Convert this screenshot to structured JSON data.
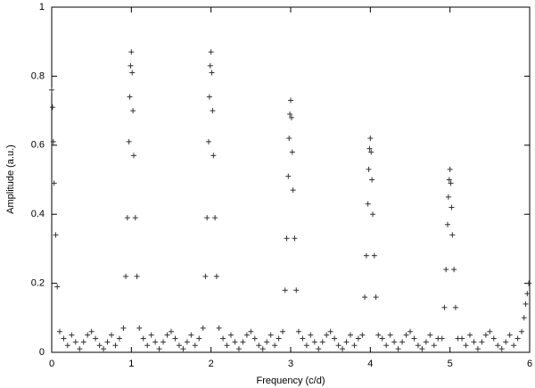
{
  "chart_data": {
    "type": "scatter",
    "xlabel": "Frequency (c/d)",
    "ylabel": "Amplitude (a.u.)",
    "color": "#333333",
    "marker": "+",
    "grid": false,
    "xlim": [
      0,
      6
    ],
    "ylim": [
      0,
      1
    ],
    "xticks": [
      0,
      1,
      2,
      3,
      4,
      5,
      6
    ],
    "yticks": [
      0,
      0.2,
      0.4,
      0.6,
      0.8,
      1
    ],
    "x": [
      0,
      0.01,
      0.02,
      0.03,
      0.05,
      0.07,
      0.1,
      0.15,
      0.2,
      0.25,
      0.3,
      0.35,
      0.4,
      0.45,
      0.5,
      0.55,
      0.6,
      0.65,
      0.7,
      0.75,
      0.8,
      0.85,
      0.9,
      0.93,
      0.95,
      0.97,
      0.98,
      0.99,
      1,
      1.01,
      1.02,
      1.03,
      1.05,
      1.07,
      1.1,
      1.15,
      1.2,
      1.25,
      1.3,
      1.35,
      1.4,
      1.45,
      1.5,
      1.55,
      1.6,
      1.65,
      1.7,
      1.75,
      1.8,
      1.85,
      1.9,
      1.93,
      1.95,
      1.97,
      1.98,
      1.99,
      2,
      2.01,
      2.02,
      2.03,
      2.05,
      2.07,
      2.1,
      2.15,
      2.2,
      2.25,
      2.3,
      2.35,
      2.4,
      2.45,
      2.5,
      2.55,
      2.6,
      2.65,
      2.7,
      2.75,
      2.8,
      2.85,
      2.9,
      2.93,
      2.95,
      2.97,
      2.98,
      2.99,
      3,
      3.01,
      3.02,
      3.03,
      3.05,
      3.07,
      3.1,
      3.15,
      3.2,
      3.25,
      3.3,
      3.35,
      3.4,
      3.45,
      3.5,
      3.55,
      3.6,
      3.65,
      3.7,
      3.75,
      3.8,
      3.85,
      3.9,
      3.93,
      3.95,
      3.97,
      3.98,
      3.99,
      4,
      4.01,
      4.02,
      4.03,
      4.05,
      4.07,
      4.1,
      4.15,
      4.2,
      4.25,
      4.3,
      4.35,
      4.4,
      4.45,
      4.5,
      4.55,
      4.6,
      4.65,
      4.7,
      4.75,
      4.8,
      4.85,
      4.9,
      4.93,
      4.95,
      4.97,
      4.98,
      4.99,
      5,
      5.01,
      5.02,
      5.03,
      5.05,
      5.07,
      5.1,
      5.15,
      5.2,
      5.25,
      5.3,
      5.35,
      5.4,
      5.45,
      5.5,
      5.55,
      5.6,
      5.65,
      5.7,
      5.75,
      5.8,
      5.85,
      5.9,
      5.93,
      5.95,
      5.97,
      5.99
    ],
    "values": [
      0.76,
      0.71,
      0.61,
      0.49,
      0.34,
      0.19,
      0.06,
      0.04,
      0.02,
      0.05,
      0.03,
      0.01,
      0.03,
      0.05,
      0.06,
      0.04,
      0.02,
      0.01,
      0.03,
      0.05,
      0.02,
      0.04,
      0.07,
      0.22,
      0.39,
      0.61,
      0.74,
      0.83,
      0.87,
      0.81,
      0.7,
      0.57,
      0.39,
      0.22,
      0.07,
      0.04,
      0.02,
      0.05,
      0.03,
      0.01,
      0.03,
      0.05,
      0.06,
      0.04,
      0.02,
      0.01,
      0.03,
      0.05,
      0.02,
      0.04,
      0.07,
      0.22,
      0.39,
      0.61,
      0.74,
      0.83,
      0.87,
      0.81,
      0.7,
      0.57,
      0.39,
      0.22,
      0.07,
      0.04,
      0.02,
      0.05,
      0.03,
      0.01,
      0.03,
      0.05,
      0.06,
      0.04,
      0.02,
      0.01,
      0.03,
      0.05,
      0.02,
      0.04,
      0.06,
      0.18,
      0.33,
      0.51,
      0.62,
      0.69,
      0.73,
      0.68,
      0.58,
      0.47,
      0.33,
      0.18,
      0.06,
      0.04,
      0.02,
      0.05,
      0.03,
      0.01,
      0.03,
      0.05,
      0.06,
      0.04,
      0.02,
      0.01,
      0.03,
      0.05,
      0.02,
      0.04,
      0.05,
      0.16,
      0.28,
      0.43,
      0.53,
      0.59,
      0.62,
      0.58,
      0.5,
      0.4,
      0.28,
      0.16,
      0.05,
      0.04,
      0.02,
      0.05,
      0.03,
      0.01,
      0.03,
      0.05,
      0.06,
      0.04,
      0.02,
      0.01,
      0.03,
      0.05,
      0.02,
      0.04,
      0.04,
      0.13,
      0.24,
      0.37,
      0.45,
      0.5,
      0.53,
      0.49,
      0.42,
      0.34,
      0.24,
      0.13,
      0.04,
      0.04,
      0.02,
      0.05,
      0.03,
      0.01,
      0.03,
      0.05,
      0.06,
      0.04,
      0.02,
      0.01,
      0.03,
      0.05,
      0.02,
      0.04,
      0.06,
      0.1,
      0.14,
      0.17,
      0.2
    ]
  }
}
